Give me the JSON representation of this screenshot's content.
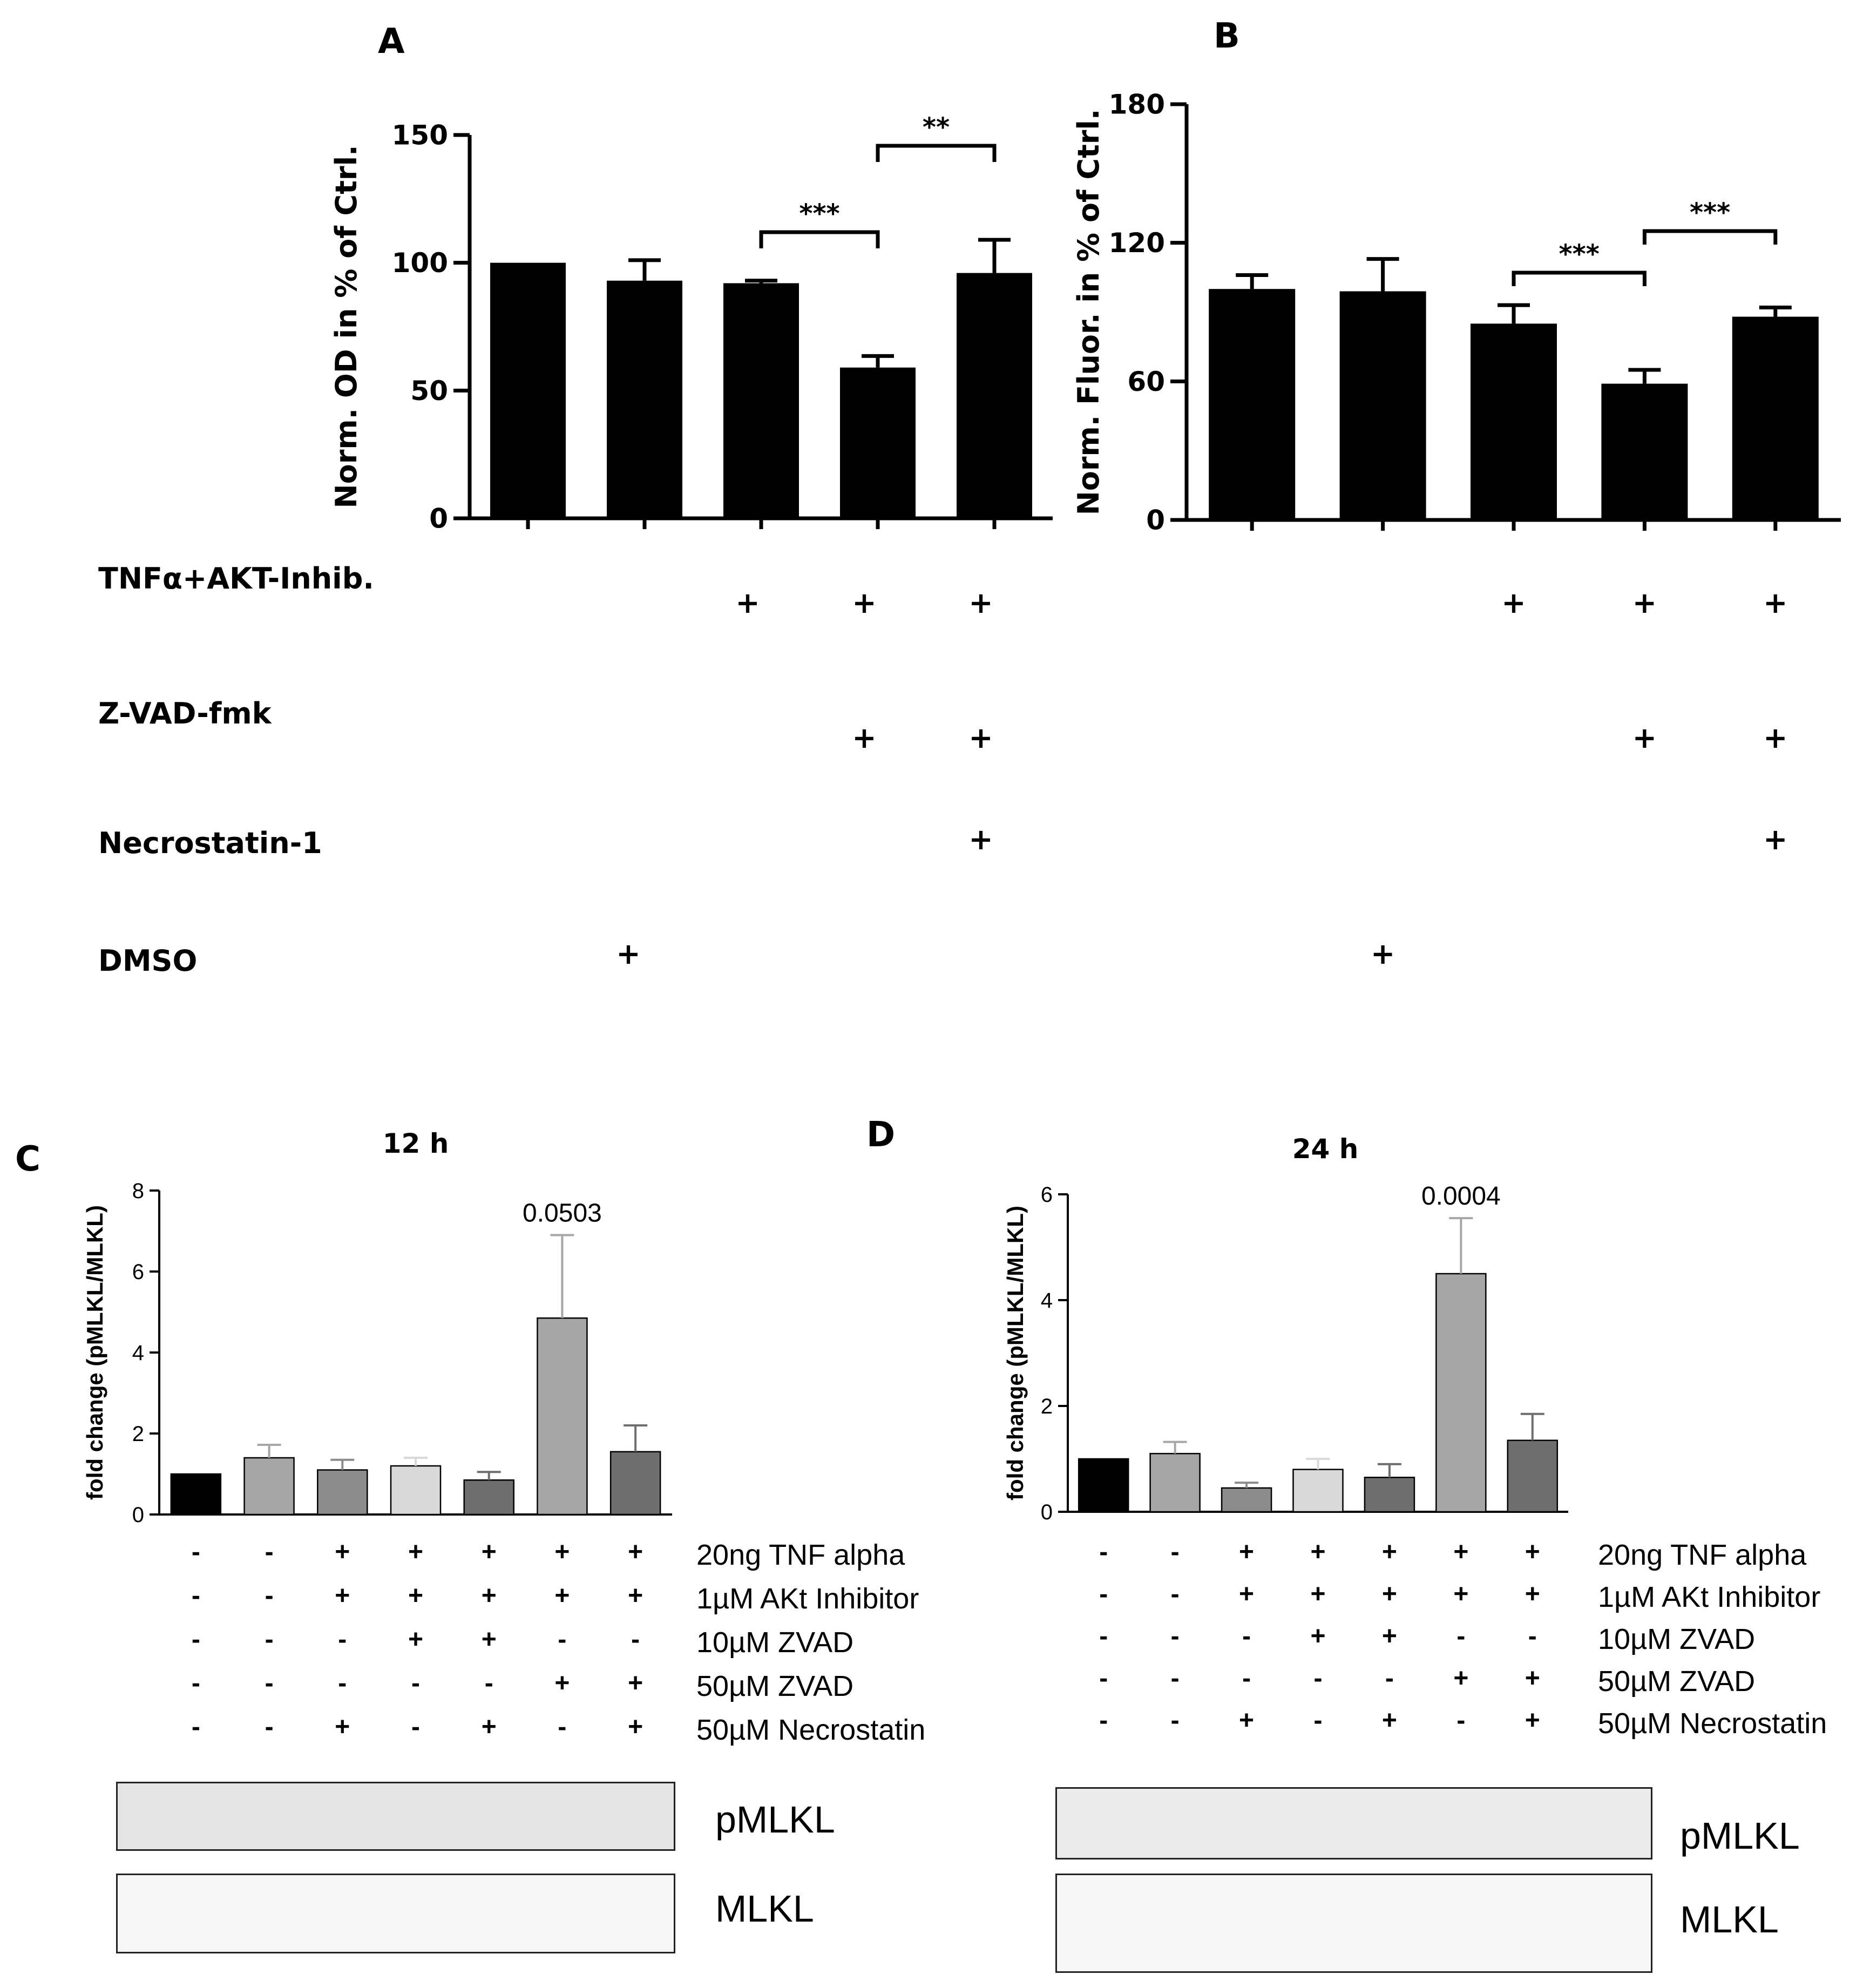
{
  "panels": {
    "a": "A",
    "b": "B",
    "c": "C",
    "d": "D"
  },
  "top_conditions": {
    "labels": [
      "TNFα+AKT-Inhib.",
      "Z-VAD-fmk",
      "Necrostatin-1",
      "DMSO"
    ],
    "rows": [
      [
        "",
        "",
        "+",
        "+",
        "+"
      ],
      [
        "",
        "",
        "",
        "+",
        "+"
      ],
      [
        "",
        "",
        "",
        "",
        "+"
      ],
      [
        "",
        "+",
        "",
        "",
        ""
      ]
    ]
  },
  "bottom_conditions": {
    "labels": [
      "20ng TNF alpha",
      "1µM AKt Inhibitor",
      "10µM ZVAD",
      "50µM ZVAD",
      "50µM Necrostatin"
    ],
    "rows": [
      [
        "-",
        "-",
        "+",
        "+",
        "+",
        "+",
        "+"
      ],
      [
        "-",
        "-",
        "+",
        "+",
        "+",
        "+",
        "+"
      ],
      [
        "-",
        "-",
        "-",
        "+",
        "+",
        "-",
        "-"
      ],
      [
        "-",
        "-",
        "-",
        "-",
        "-",
        "+",
        "+"
      ],
      [
        "-",
        "-",
        "+",
        "-",
        "+",
        "-",
        "+"
      ]
    ]
  },
  "blots": {
    "c": [
      "pMLKL",
      "MLKL"
    ],
    "d": [
      "pMLKL",
      "MLKL"
    ]
  },
  "chart_data": [
    {
      "panel": "A",
      "type": "bar",
      "title": "",
      "ylabel": "Norm. OD in % of Ctrl.",
      "ylim": [
        0,
        150
      ],
      "yticks": [
        "0",
        "50",
        "100",
        "150"
      ],
      "values": [
        100,
        93,
        92,
        59,
        96
      ],
      "errors": [
        0,
        8,
        1,
        4.5,
        13
      ],
      "bar_color": "#000000",
      "significance": [
        {
          "from": 3,
          "to": 4,
          "label": "***"
        },
        {
          "from": 4,
          "to": 5,
          "label": "**"
        }
      ]
    },
    {
      "panel": "B",
      "type": "bar",
      "title": "",
      "ylabel": "Norm. Fluor. in % of Ctrl.",
      "ylim": [
        0,
        180
      ],
      "yticks": [
        "0",
        "60",
        "120",
        "180"
      ],
      "values": [
        100,
        99,
        85,
        59,
        88
      ],
      "errors": [
        6,
        14,
        8,
        6,
        4
      ],
      "bar_color": "#000000",
      "significance": [
        {
          "from": 3,
          "to": 4,
          "label": "***"
        },
        {
          "from": 4,
          "to": 5,
          "label": "***"
        }
      ]
    },
    {
      "panel": "C",
      "type": "bar",
      "title": "12 h",
      "ylabel": "fold change (pMLKL/MLKL)",
      "ylim": [
        0,
        8
      ],
      "yticks": [
        "0",
        "2",
        "4",
        "6",
        "8"
      ],
      "values": [
        1.0,
        1.4,
        1.1,
        1.2,
        0.85,
        4.85,
        1.55
      ],
      "errors": [
        0,
        0.32,
        0.25,
        0.2,
        0.2,
        2.05,
        0.65
      ],
      "colors": [
        "#000000",
        "#a6a6a6",
        "#8c8c8c",
        "#d9d9d9",
        "#6e6e6e",
        "#a6a6a6",
        "#6e6e6e"
      ],
      "annotation": {
        "bar": 6,
        "text": "0.0503"
      }
    },
    {
      "panel": "D",
      "type": "bar",
      "title": "24 h",
      "ylabel": "fold change (pMLKL/MLKL)",
      "ylim": [
        0,
        6
      ],
      "yticks": [
        "0",
        "2",
        "4",
        "6"
      ],
      "values": [
        1.0,
        1.1,
        0.45,
        0.8,
        0.65,
        4.5,
        1.35
      ],
      "errors": [
        0,
        0.22,
        0.1,
        0.2,
        0.25,
        1.05,
        0.5
      ],
      "colors": [
        "#000000",
        "#a6a6a6",
        "#8c8c8c",
        "#d9d9d9",
        "#6e6e6e",
        "#a6a6a6",
        "#6e6e6e"
      ],
      "annotation": {
        "bar": 6,
        "text": "0.0004"
      }
    }
  ]
}
